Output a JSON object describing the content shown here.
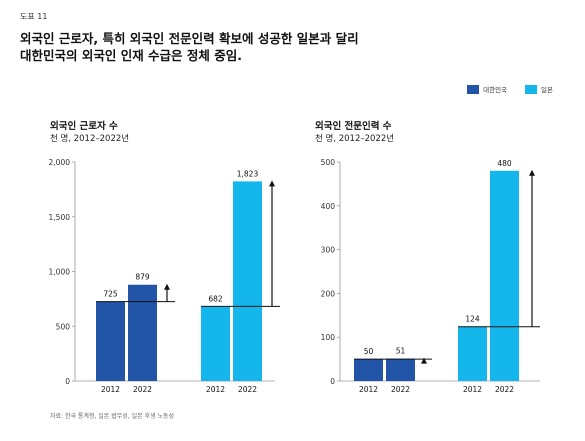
{
  "figure_label": "도표 11",
  "headline": [
    "외국인 근로자, 특히 외국인 전문인력 확보에 성공한 일본과 달리",
    "대한민국의 외국인 인재 수급은 정체 중임."
  ],
  "legend": [
    {
      "name": "대한민국",
      "color": "#2254a8"
    },
    {
      "name": "일본",
      "color": "#14b6ec"
    }
  ],
  "source": "자료: 한국 통계청, 일본 법무성, 일본 후생 노동성",
  "chart_data": [
    {
      "type": "bar",
      "title": "외국인 근로자 수",
      "subtitle": "천 명, 2012–2022년",
      "ylim": [
        0,
        2000
      ],
      "yticks": [
        0,
        500,
        1000,
        1500,
        2000
      ],
      "ytick_labels": [
        "0",
        "500",
        "1,000",
        "1,500",
        "2,000"
      ],
      "groups": [
        {
          "name": "대한민국",
          "color": "#2254a8",
          "categories": [
            "2012",
            "2022"
          ],
          "values": [
            725,
            879
          ],
          "labels": [
            "725",
            "879"
          ]
        },
        {
          "name": "일본",
          "color": "#14b6ec",
          "categories": [
            "2012",
            "2022"
          ],
          "values": [
            682,
            1823
          ],
          "labels": [
            "682",
            "1,823"
          ]
        }
      ]
    },
    {
      "type": "bar",
      "title": "외국인 전문인력 수",
      "subtitle": "천 명, 2012–2022년",
      "ylim": [
        0,
        500
      ],
      "yticks": [
        0,
        100,
        200,
        300,
        400,
        500
      ],
      "ytick_labels": [
        "0",
        "100",
        "200",
        "300",
        "400",
        "500"
      ],
      "groups": [
        {
          "name": "대한민국",
          "color": "#2254a8",
          "categories": [
            "2012",
            "2022"
          ],
          "values": [
            50,
            51
          ],
          "labels": [
            "50",
            "51"
          ]
        },
        {
          "name": "일본",
          "color": "#14b6ec",
          "categories": [
            "2012",
            "2022"
          ],
          "values": [
            124,
            480
          ],
          "labels": [
            "124",
            "480"
          ]
        }
      ]
    }
  ]
}
